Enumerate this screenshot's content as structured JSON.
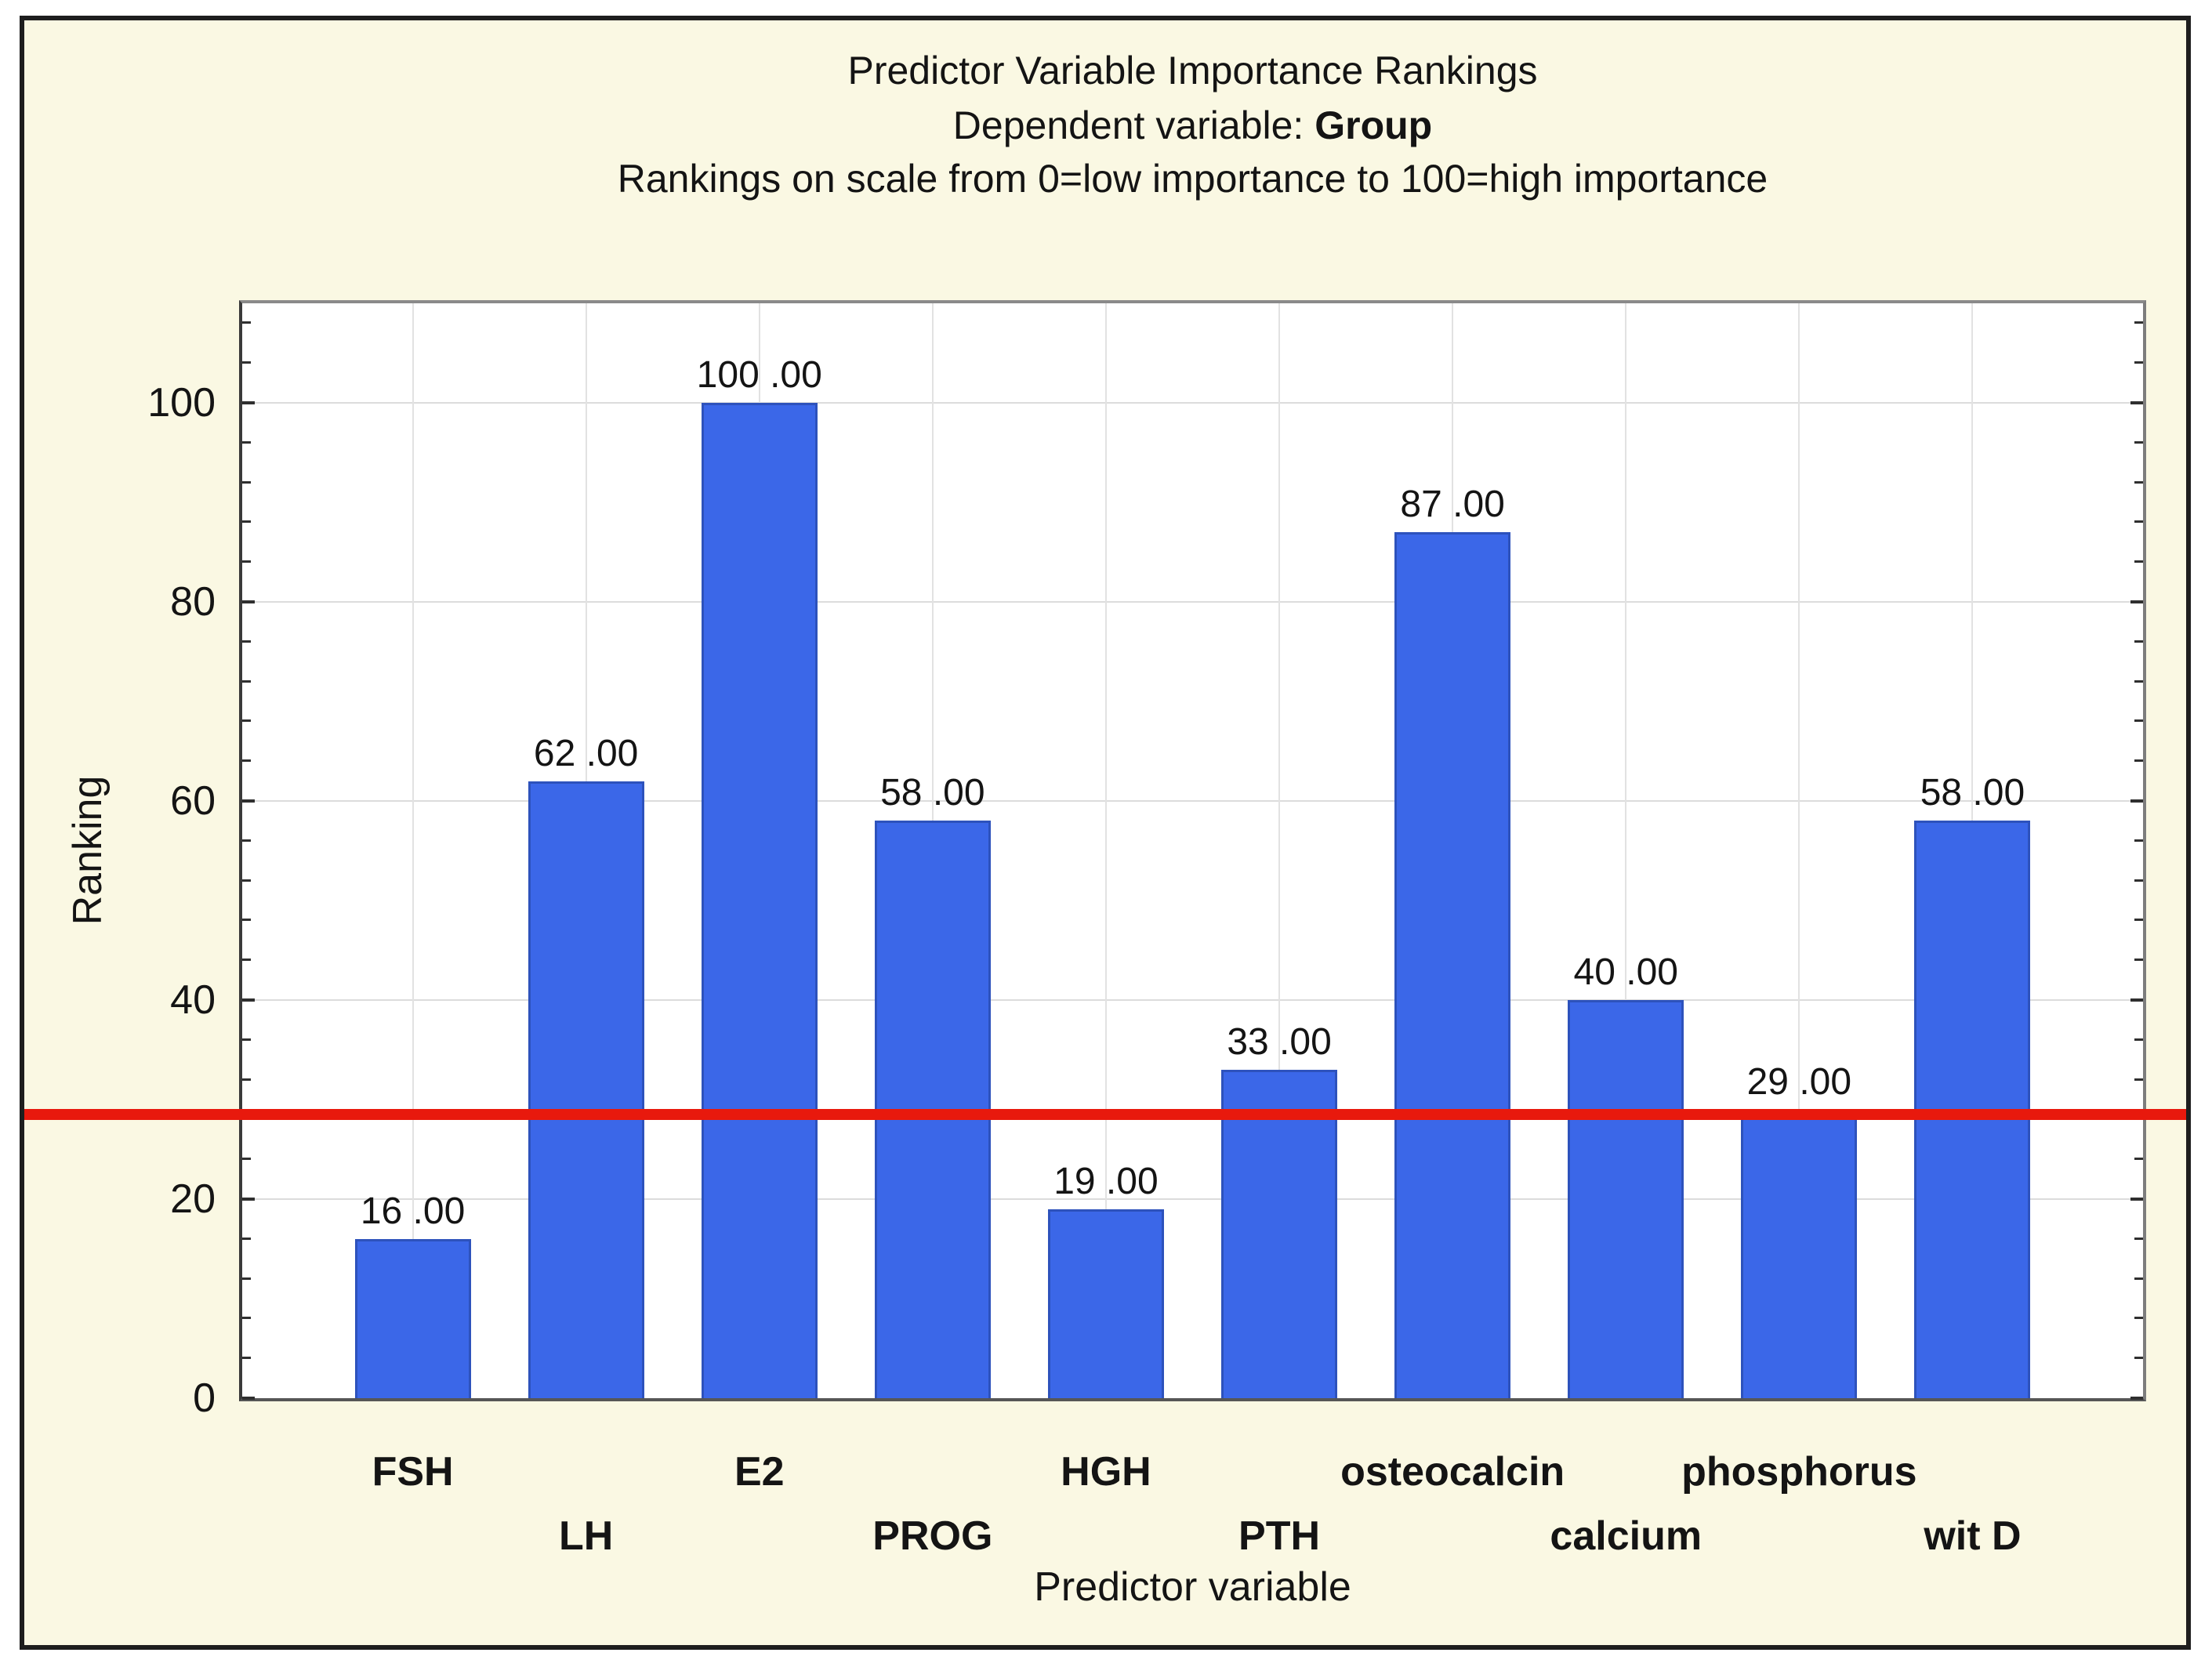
{
  "chart_data": {
    "type": "bar",
    "title": "Predictor Variable Importance Rankings",
    "subtitle": {
      "prefix": "Dependent variable: ",
      "emphasis": "Group"
    },
    "note": "Rankings on scale from 0=low importance to 100=high importance",
    "xlabel": "Predictor variable",
    "ylabel": "Ranking",
    "categories": [
      "FSH",
      "LH",
      "E2",
      "PROG",
      "HGH",
      "PTH",
      "osteocalcin",
      "calcium",
      "phosphorus",
      "wit D"
    ],
    "values": [
      16,
      62,
      100,
      58,
      19,
      33,
      87,
      40,
      29,
      58
    ],
    "value_labels": [
      "16 .00",
      "62 .00",
      "100 .00",
      "58 .00",
      "19 .00",
      "33 .00",
      "87 .00",
      "40 .00",
      "29 .00",
      "58 .00"
    ],
    "ylim": [
      0,
      110
    ],
    "yticks": [
      0,
      20,
      40,
      60,
      80,
      100
    ],
    "minor_tick_step": 4,
    "grid": {
      "horizontal": true,
      "vertical": "at-category-centers"
    },
    "reference_line": {
      "value": 28.5
    },
    "legend": "none",
    "colors": {
      "bar": "#3b67e8",
      "bar_border": "#2d52bc",
      "reference_line": "#e8190d",
      "figure_background": "#faf8e3",
      "plot_background": "#ffffff",
      "gridline_h": "#dcdcdc",
      "gridline_v": "#e2e2e2",
      "text": "#141414"
    }
  }
}
